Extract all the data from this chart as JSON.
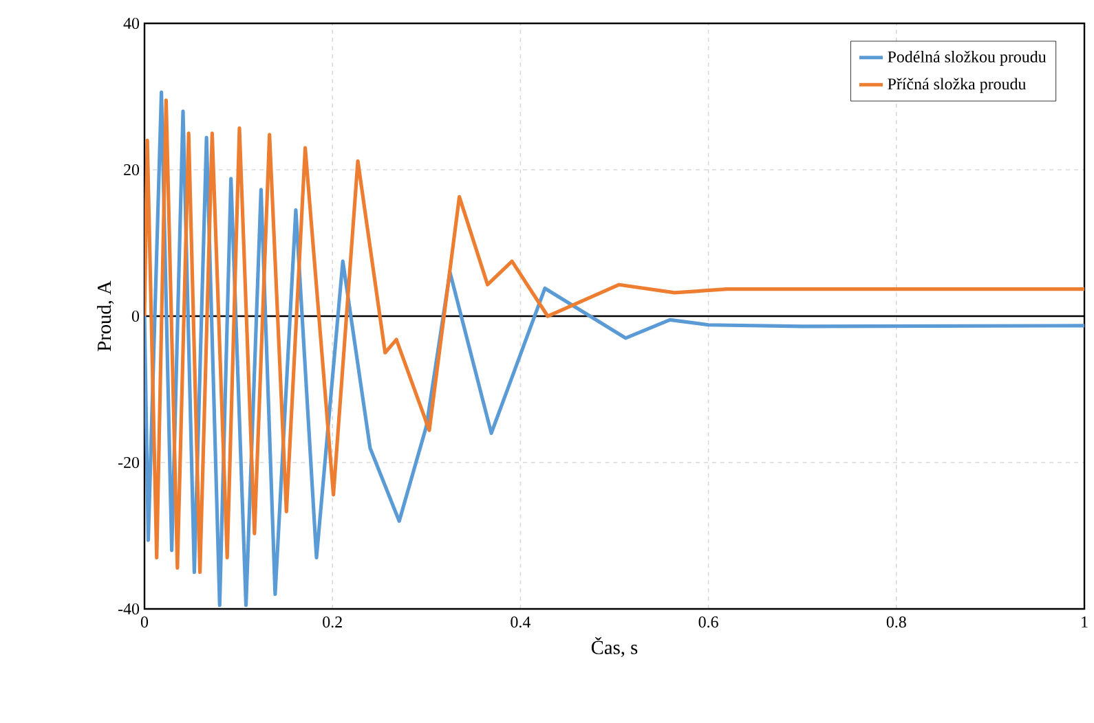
{
  "chart_data": {
    "type": "line",
    "xlabel": "Čas, s",
    "ylabel": "Proud, A",
    "xlim": [
      0,
      1
    ],
    "xticks": [
      0,
      0.2,
      0.4,
      0.6,
      0.8,
      1
    ],
    "ylim": [
      -40,
      40
    ],
    "yticks": [
      -40,
      -20,
      0,
      20,
      40
    ],
    "grid": true,
    "legend": "top right",
    "line_style": "solid",
    "marker": "none",
    "ref_lines": [
      {
        "axis": "y",
        "value": 0,
        "color": "#000000"
      }
    ],
    "series": [
      {
        "name": "Podélná složkou proudu",
        "color": "#5b9bd5",
        "x": [
          0,
          0.004,
          0.018,
          0.029,
          0.041,
          0.053,
          0.066,
          0.08,
          0.092,
          0.108,
          0.124,
          0.139,
          0.161,
          0.183,
          0.211,
          0.24,
          0.271,
          0.3,
          0.325,
          0.369,
          0.426,
          0.512,
          0.559,
          0.6,
          0.7,
          1
        ],
        "values": [
          0,
          -30.6,
          30.6,
          -32,
          28,
          -35,
          24.4,
          -39.5,
          18.8,
          -39.5,
          17.3,
          -38,
          14.5,
          -33,
          7.5,
          -18,
          -28,
          -15,
          6,
          -16,
          3.8,
          -3,
          -0.5,
          -1.2,
          -1.4,
          -1.3
        ]
      },
      {
        "name": "Příčná složka proudu",
        "color": "#ed7d31",
        "x": [
          0,
          0.003,
          0.013,
          0.023,
          0.035,
          0.047,
          0.059,
          0.072,
          0.088,
          0.101,
          0.117,
          0.133,
          0.151,
          0.171,
          0.201,
          0.227,
          0.256,
          0.268,
          0.303,
          0.335,
          0.365,
          0.391,
          0.429,
          0.505,
          0.564,
          0.62,
          1
        ],
        "values": [
          0,
          24,
          -33,
          29.5,
          -34.4,
          25,
          -35,
          25,
          -33,
          25.7,
          -29.7,
          24.8,
          -26.7,
          23,
          -24.4,
          21.2,
          -5,
          -3.2,
          -15.6,
          16.3,
          4.3,
          7.5,
          0,
          4.3,
          3.2,
          3.7,
          3.7
        ]
      }
    ]
  }
}
